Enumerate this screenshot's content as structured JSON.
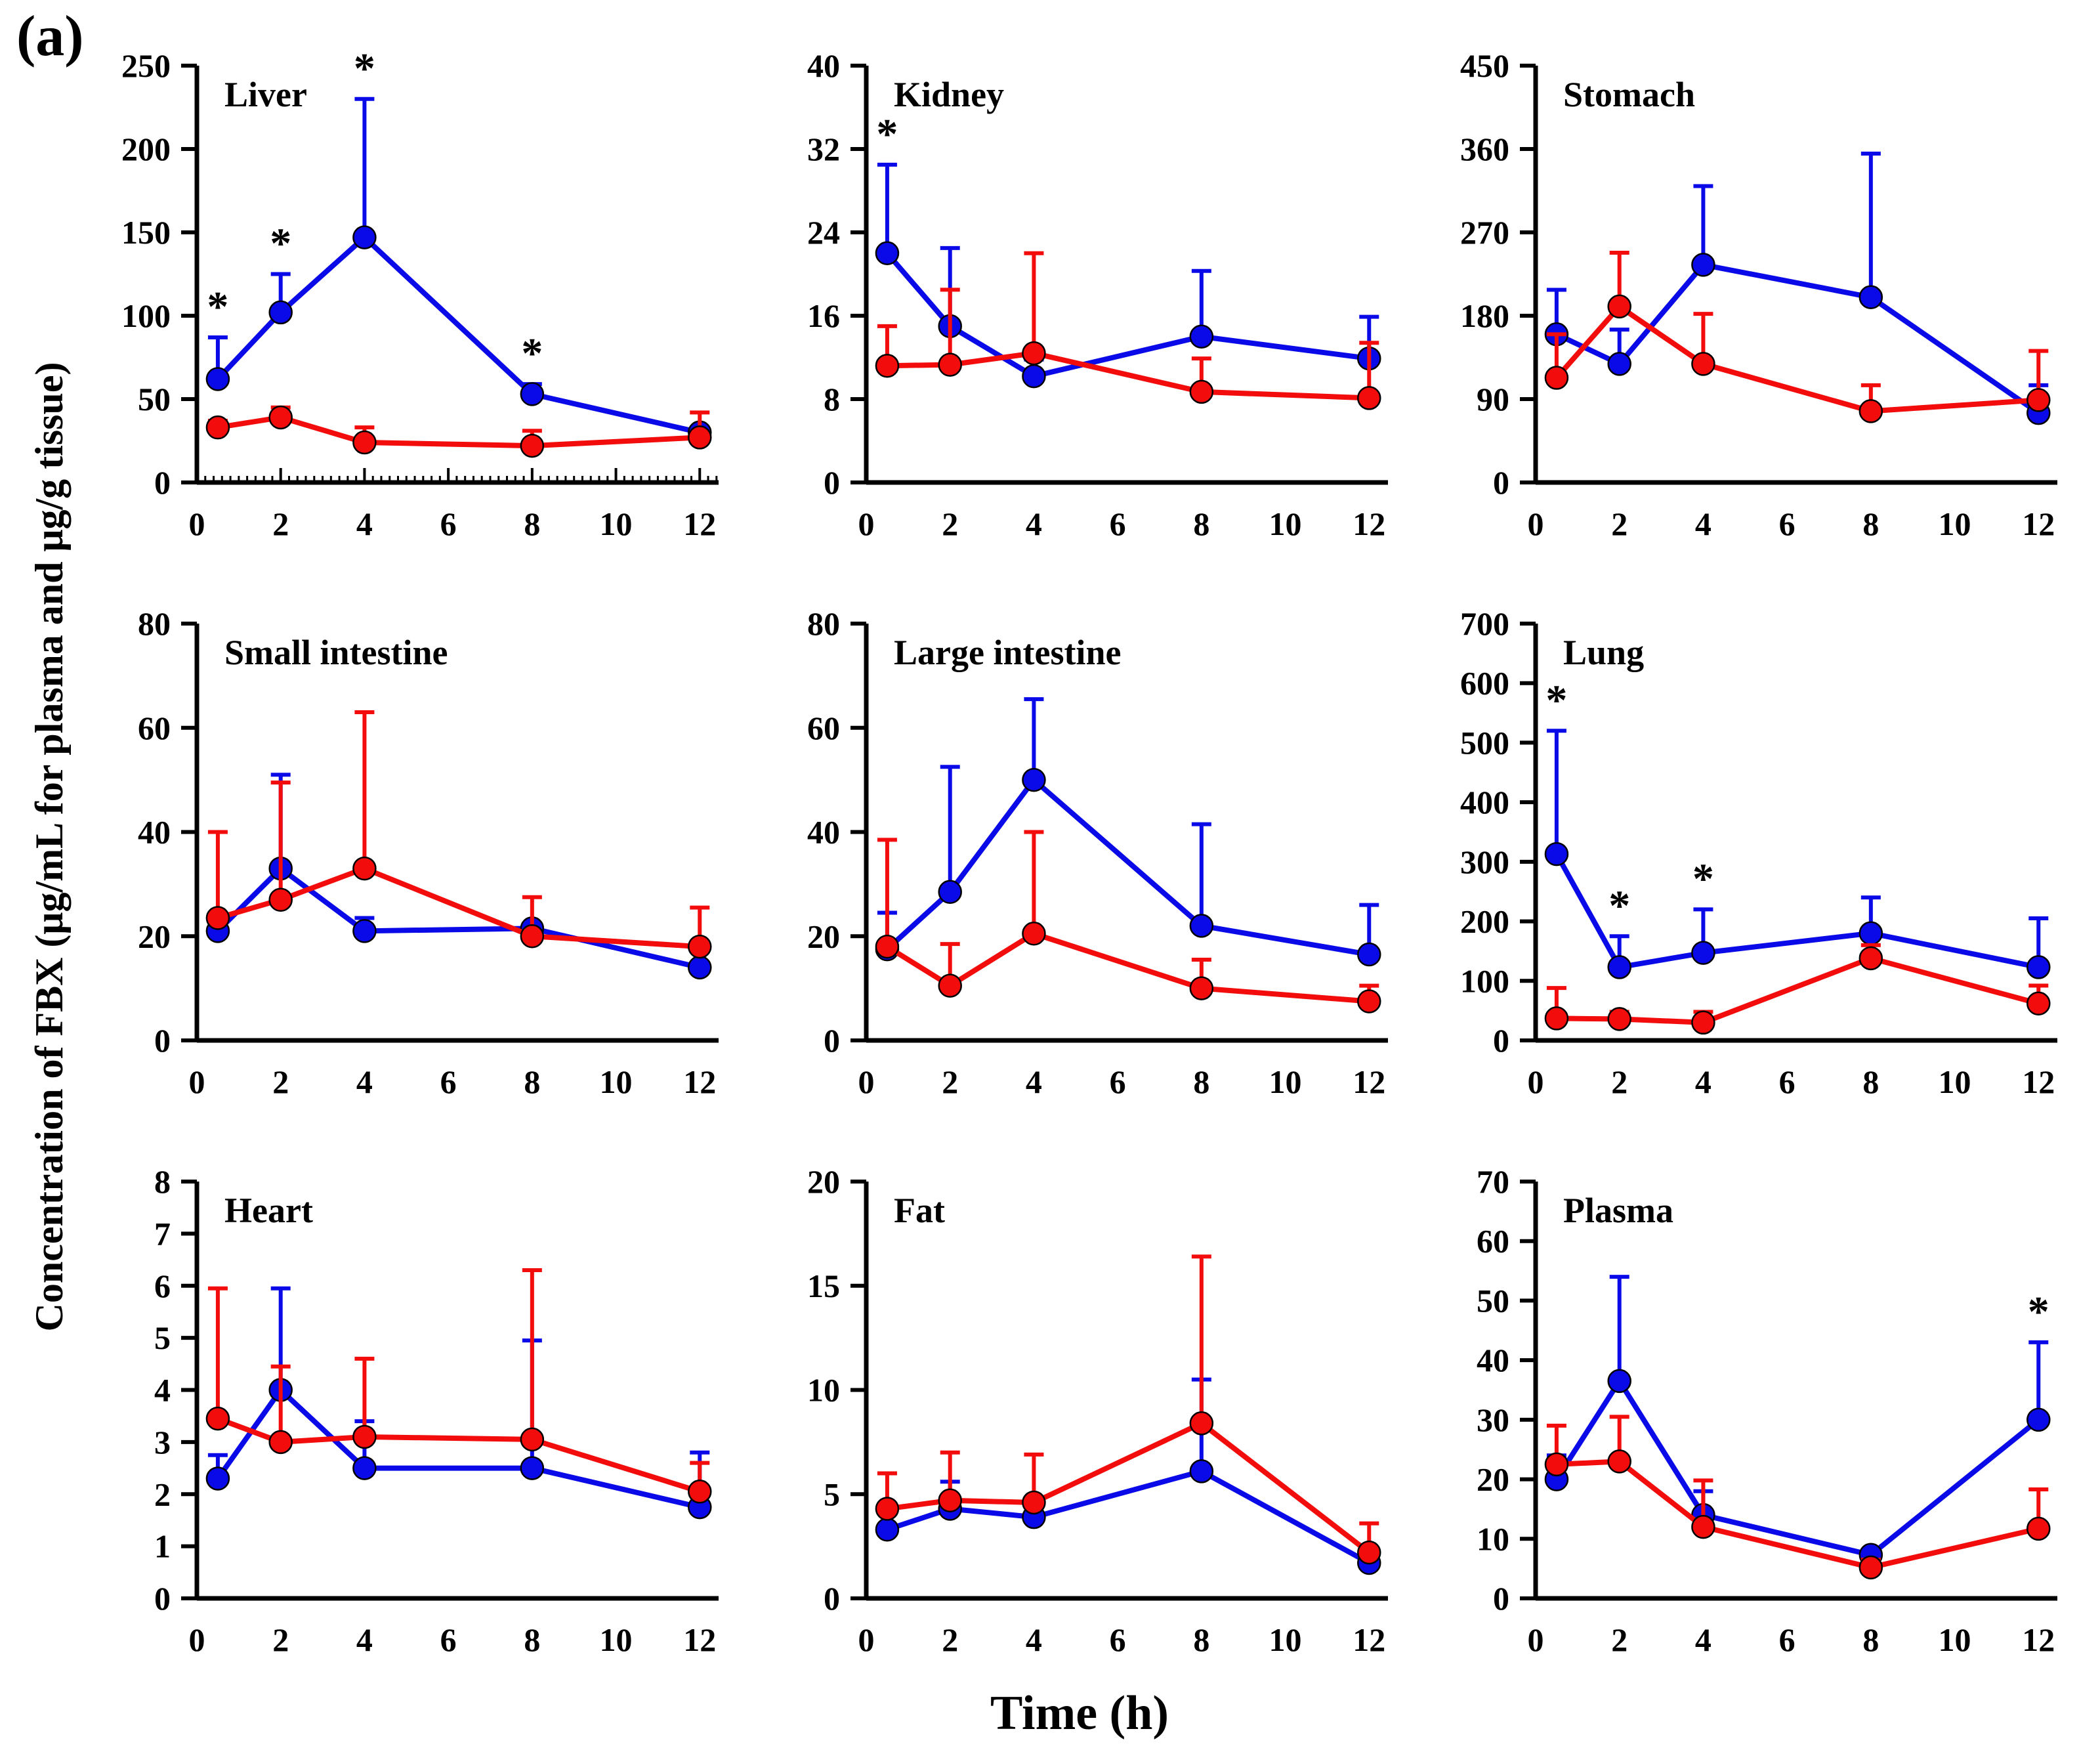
{
  "figure": {
    "panel_label": "(a)",
    "y_axis_label": "Concentration of FBX (μg/mL for plasma and μg/g tissue)",
    "x_axis_label": "Time (h)"
  },
  "colors": {
    "blue": "#0a0ae8",
    "red": "#f20c0c"
  },
  "chart_data": [
    {
      "type": "line",
      "title": "Liver",
      "x": [
        0.5,
        2,
        4,
        8,
        12
      ],
      "xticks": [
        0,
        2,
        4,
        6,
        8,
        10,
        12
      ],
      "xlim": [
        0,
        12.45
      ],
      "ylim": [
        0,
        250
      ],
      "yticks": [
        0,
        50,
        100,
        150,
        200,
        250
      ],
      "minor_x_ticks": true,
      "series": [
        {
          "name": "blue",
          "color": "blue",
          "values": [
            62,
            102,
            147,
            53,
            30
          ],
          "err_up": [
            25,
            23,
            83,
            6,
            0
          ],
          "sig": [
            1,
            1,
            1,
            1,
            0
          ]
        },
        {
          "name": "red",
          "color": "red",
          "values": [
            33,
            39,
            24,
            22,
            27
          ],
          "err_up": [
            4,
            6,
            9,
            9,
            15
          ],
          "sig": [
            0,
            0,
            0,
            0,
            0
          ]
        }
      ]
    },
    {
      "type": "line",
      "title": "Kidney",
      "x": [
        0.5,
        2,
        4,
        8,
        12
      ],
      "xticks": [
        0,
        2,
        4,
        6,
        8,
        10,
        12
      ],
      "xlim": [
        0,
        12.45
      ],
      "ylim": [
        0,
        40
      ],
      "yticks": [
        0,
        8,
        16,
        24,
        32,
        40
      ],
      "minor_x_ticks": false,
      "series": [
        {
          "name": "blue",
          "color": "blue",
          "values": [
            22,
            15,
            10.2,
            14,
            11.9
          ],
          "err_up": [
            8.5,
            7.5,
            1.6,
            6.3,
            4.0
          ],
          "sig": [
            1,
            0,
            0,
            0,
            0
          ]
        },
        {
          "name": "red",
          "color": "red",
          "values": [
            11.2,
            11.3,
            12.4,
            8.7,
            8.1
          ],
          "err_up": [
            3.8,
            7.2,
            9.6,
            3.2,
            5.3
          ],
          "sig": [
            0,
            0,
            0,
            0,
            0
          ]
        }
      ]
    },
    {
      "type": "line",
      "title": "Stomach",
      "x": [
        0.5,
        2,
        4,
        8,
        12
      ],
      "xticks": [
        0,
        2,
        4,
        6,
        8,
        10,
        12
      ],
      "xlim": [
        0,
        12.45
      ],
      "ylim": [
        0,
        450
      ],
      "yticks": [
        0,
        90,
        180,
        270,
        360,
        450
      ],
      "minor_x_ticks": false,
      "series": [
        {
          "name": "blue",
          "color": "blue",
          "values": [
            160,
            128,
            235,
            200,
            75
          ],
          "err_up": [
            48,
            37,
            85,
            155,
            30
          ],
          "sig": [
            0,
            0,
            0,
            0,
            0
          ]
        },
        {
          "name": "red",
          "color": "red",
          "values": [
            113,
            190,
            128,
            77,
            89
          ],
          "err_up": [
            47,
            58,
            54,
            28,
            53
          ],
          "sig": [
            0,
            0,
            0,
            0,
            0
          ]
        }
      ]
    },
    {
      "type": "line",
      "title": "Small intestine",
      "x": [
        0.5,
        2,
        4,
        8,
        12
      ],
      "xticks": [
        0,
        2,
        4,
        6,
        8,
        10,
        12
      ],
      "xlim": [
        0,
        12.45
      ],
      "ylim": [
        0,
        80
      ],
      "yticks": [
        0,
        20,
        40,
        60,
        80
      ],
      "minor_x_ticks": false,
      "series": [
        {
          "name": "blue",
          "color": "blue",
          "values": [
            21,
            33,
            21,
            21.5,
            14
          ],
          "err_up": [
            2,
            18,
            2.5,
            0,
            0
          ],
          "sig": [
            0,
            0,
            0,
            0,
            0
          ]
        },
        {
          "name": "red",
          "color": "red",
          "values": [
            23.5,
            27,
            33,
            20,
            18
          ],
          "err_up": [
            16.5,
            22.5,
            30,
            7.5,
            7.5
          ],
          "sig": [
            0,
            0,
            0,
            0,
            0
          ]
        }
      ]
    },
    {
      "type": "line",
      "title": "Large intestine",
      "x": [
        0.5,
        2,
        4,
        8,
        12
      ],
      "xticks": [
        0,
        2,
        4,
        6,
        8,
        10,
        12
      ],
      "xlim": [
        0,
        12.45
      ],
      "ylim": [
        0,
        80
      ],
      "yticks": [
        0,
        20,
        40,
        60,
        80
      ],
      "minor_x_ticks": false,
      "series": [
        {
          "name": "blue",
          "color": "blue",
          "values": [
            17.5,
            28.5,
            50,
            22,
            16.5
          ],
          "err_up": [
            7,
            24,
            15.5,
            19.5,
            9.5
          ],
          "sig": [
            0,
            0,
            0,
            0,
            0
          ]
        },
        {
          "name": "red",
          "color": "red",
          "values": [
            18,
            10.5,
            20.5,
            10,
            7.5
          ],
          "err_up": [
            20.5,
            8,
            19.5,
            5.5,
            3
          ],
          "sig": [
            0,
            0,
            0,
            0,
            0
          ]
        }
      ]
    },
    {
      "type": "line",
      "title": "Lung",
      "x": [
        0.5,
        2,
        4,
        8,
        12
      ],
      "xticks": [
        0,
        2,
        4,
        6,
        8,
        10,
        12
      ],
      "xlim": [
        0,
        12.45
      ],
      "ylim": [
        0,
        700
      ],
      "yticks": [
        0,
        100,
        200,
        300,
        400,
        500,
        600,
        700
      ],
      "minor_x_ticks": false,
      "series": [
        {
          "name": "blue",
          "color": "blue",
          "values": [
            313,
            123,
            147,
            180,
            123
          ],
          "err_up": [
            207,
            52,
            73,
            60,
            82
          ],
          "sig": [
            1,
            1,
            1,
            0,
            0
          ]
        },
        {
          "name": "red",
          "color": "red",
          "values": [
            37,
            36,
            30,
            138,
            62
          ],
          "err_up": [
            51,
            12,
            18,
            22,
            30
          ],
          "sig": [
            0,
            0,
            0,
            0,
            0
          ]
        }
      ]
    },
    {
      "type": "line",
      "title": "Heart",
      "x": [
        0.5,
        2,
        4,
        8,
        12
      ],
      "xticks": [
        0,
        2,
        4,
        6,
        8,
        10,
        12
      ],
      "xlim": [
        0,
        12.45
      ],
      "ylim": [
        0,
        8
      ],
      "yticks": [
        0,
        1,
        2,
        3,
        4,
        5,
        6,
        7,
        8
      ],
      "minor_x_ticks": false,
      "series": [
        {
          "name": "blue",
          "color": "blue",
          "values": [
            2.3,
            4.0,
            2.5,
            2.5,
            1.75
          ],
          "err_up": [
            0.45,
            1.95,
            0.9,
            2.45,
            1.05
          ],
          "sig": [
            0,
            0,
            0,
            0,
            0
          ]
        },
        {
          "name": "red",
          "color": "red",
          "values": [
            3.45,
            3.0,
            3.1,
            3.05,
            2.05
          ],
          "err_up": [
            2.5,
            1.45,
            1.5,
            3.25,
            0.55
          ],
          "sig": [
            0,
            0,
            0,
            0,
            0
          ]
        }
      ]
    },
    {
      "type": "line",
      "title": "Fat",
      "x": [
        0.5,
        2,
        4,
        8,
        12
      ],
      "xticks": [
        0,
        2,
        4,
        6,
        8,
        10,
        12
      ],
      "xlim": [
        0,
        12.45
      ],
      "ylim": [
        0,
        20
      ],
      "yticks": [
        0,
        5,
        10,
        15,
        20
      ],
      "minor_x_ticks": false,
      "series": [
        {
          "name": "blue",
          "color": "blue",
          "values": [
            3.3,
            4.3,
            3.9,
            6.1,
            1.7
          ],
          "err_up": [
            0,
            1.3,
            0,
            4.4,
            0
          ],
          "sig": [
            0,
            0,
            0,
            0,
            0
          ]
        },
        {
          "name": "red",
          "color": "red",
          "values": [
            4.3,
            4.7,
            4.6,
            8.4,
            2.2
          ],
          "err_up": [
            1.7,
            2.3,
            2.3,
            8.0,
            1.4
          ],
          "sig": [
            0,
            0,
            0,
            0,
            0
          ]
        }
      ]
    },
    {
      "type": "line",
      "title": "Plasma",
      "x": [
        0.5,
        2,
        4,
        8,
        12
      ],
      "xticks": [
        0,
        2,
        4,
        6,
        8,
        10,
        12
      ],
      "xlim": [
        0,
        12.45
      ],
      "ylim": [
        0,
        70
      ],
      "yticks": [
        0,
        10,
        20,
        30,
        40,
        50,
        60,
        70
      ],
      "minor_x_ticks": false,
      "series": [
        {
          "name": "blue",
          "color": "blue",
          "values": [
            20,
            36.5,
            14,
            7.3,
            30
          ],
          "err_up": [
            4,
            17.5,
            4,
            0.8,
            13
          ],
          "sig": [
            0,
            0,
            0,
            0,
            1
          ]
        },
        {
          "name": "red",
          "color": "red",
          "values": [
            22.5,
            23,
            12,
            5.2,
            11.7
          ],
          "err_up": [
            6.5,
            7.5,
            7.8,
            1.3,
            6.6
          ],
          "sig": [
            0,
            0,
            0,
            0,
            0
          ]
        }
      ]
    }
  ]
}
